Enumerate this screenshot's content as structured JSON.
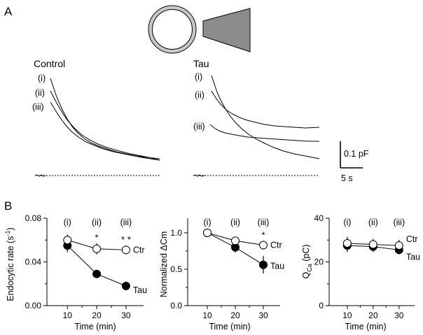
{
  "panel_a": {
    "label": "A",
    "conditions": [
      {
        "title": "Control",
        "trace_labels": [
          "(i)",
          "(ii)",
          "(iii)"
        ]
      },
      {
        "title": "Tau",
        "trace_labels": [
          "(i)",
          "(ii)",
          "(iii)"
        ]
      }
    ],
    "scale_bar": {
      "y_label": "0.1 pF",
      "x_label": "5 s"
    }
  },
  "panel_b": {
    "label": "B"
  },
  "chart_data": [
    {
      "type": "line",
      "title": "",
      "xlabel": "Time (min)",
      "ylabel": "Endocytic rate (s",
      "ylabel_superscript": "-1",
      "ylabel_close": ")",
      "x": [
        10,
        20,
        30
      ],
      "xlim": [
        3,
        36
      ],
      "ylim": [
        0,
        0.08
      ],
      "xticks": [
        10,
        20,
        30
      ],
      "yticks": [
        0.0,
        0.04,
        0.08
      ],
      "ytick_labels": [
        "0.00",
        "0.04",
        "0.08"
      ],
      "annotations": [
        "(i)",
        "(ii)",
        "(iii)"
      ],
      "significance": [
        "",
        "*",
        "* *"
      ],
      "series": [
        {
          "name": "Ctr",
          "marker": "open-circle",
          "values": [
            0.06,
            0.052,
            0.051
          ],
          "errors": [
            0.005,
            0.005,
            0.004
          ]
        },
        {
          "name": "Tau",
          "marker": "filled-circle",
          "values": [
            0.055,
            0.029,
            0.018
          ],
          "errors": [
            0.006,
            0.003,
            0.004
          ]
        }
      ]
    },
    {
      "type": "line",
      "title": "",
      "xlabel": "Time (min)",
      "ylabel": "Normalized  ΔCm",
      "x": [
        10,
        20,
        30
      ],
      "xlim": [
        3,
        36
      ],
      "ylim": [
        0,
        1.2
      ],
      "xticks": [
        10,
        20,
        30
      ],
      "yticks": [
        0.0,
        0.5,
        1.0
      ],
      "ytick_labels": [
        "0.0",
        "0.5",
        "1.0"
      ],
      "annotations": [
        "(i)",
        "(ii)",
        "(iii)"
      ],
      "significance": [
        "",
        "",
        "*"
      ],
      "series": [
        {
          "name": "Ctr",
          "marker": "open-circle",
          "values": [
            1.0,
            0.89,
            0.83
          ],
          "errors": [
            0.02,
            0.05,
            0.06
          ]
        },
        {
          "name": "Tau",
          "marker": "filled-circle",
          "values": [
            1.0,
            0.8,
            0.56
          ],
          "errors": [
            0.02,
            0.07,
            0.12
          ]
        }
      ]
    },
    {
      "type": "line",
      "title": "",
      "xlabel": "Time (min)",
      "ylabel": "Q",
      "ylabel_subscript": "Ca",
      "ylabel_close": " (pC)",
      "x": [
        10,
        20,
        30
      ],
      "xlim": [
        3,
        36
      ],
      "ylim": [
        0,
        40
      ],
      "xticks": [
        10,
        20,
        30
      ],
      "yticks": [
        0,
        20,
        40
      ],
      "ytick_labels": [
        "0",
        "20",
        "40"
      ],
      "annotations": [
        "(i)",
        "(ii)",
        "(iii)"
      ],
      "significance": [
        "",
        "",
        ""
      ],
      "series": [
        {
          "name": "Ctr",
          "marker": "open-circle",
          "values": [
            28.5,
            28,
            27.5
          ],
          "errors": [
            3,
            2.5,
            2.5
          ]
        },
        {
          "name": "Tau",
          "marker": "filled-circle",
          "values": [
            27.5,
            27,
            25.5
          ],
          "errors": [
            3,
            2.5,
            2
          ]
        }
      ]
    }
  ]
}
